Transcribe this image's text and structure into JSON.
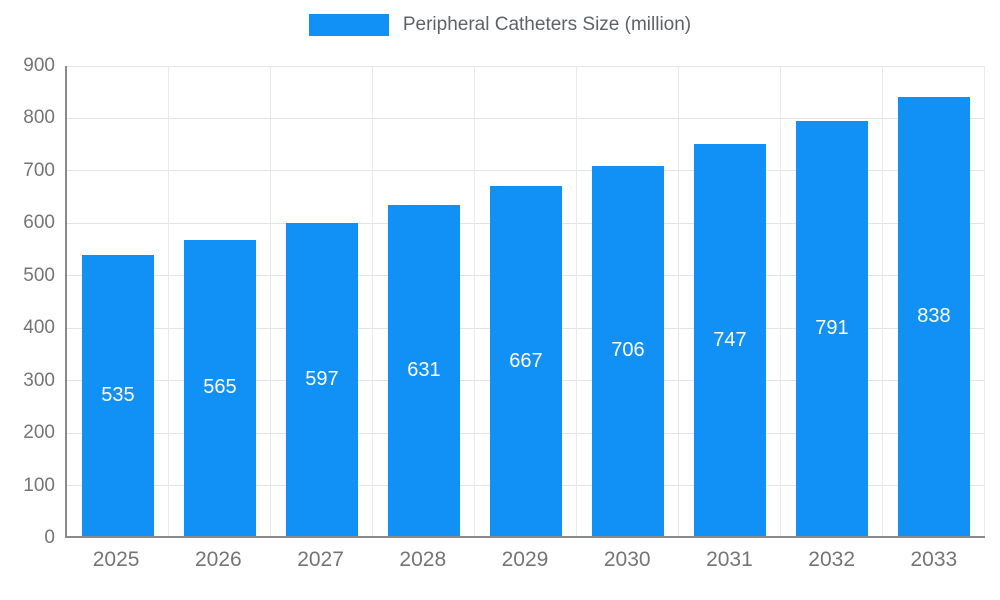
{
  "legend": {
    "label": "Peripheral Catheters Size (million)",
    "swatch_color": "#1191f5"
  },
  "chart_data": {
    "type": "bar",
    "title": "Peripheral Catheters Size (million)",
    "categories": [
      "2025",
      "2026",
      "2027",
      "2028",
      "2029",
      "2030",
      "2031",
      "2032",
      "2033"
    ],
    "values": [
      535,
      565,
      597,
      631,
      667,
      706,
      747,
      791,
      838
    ],
    "xlabel": "",
    "ylabel": "",
    "ylim": [
      0,
      900
    ],
    "ytick_step": 100,
    "yticks": [
      0,
      100,
      200,
      300,
      400,
      500,
      600,
      700,
      800,
      900
    ],
    "bar_color": "#1191f5",
    "value_label_color": "#ffffff",
    "grid": true,
    "legend_position": "top"
  }
}
